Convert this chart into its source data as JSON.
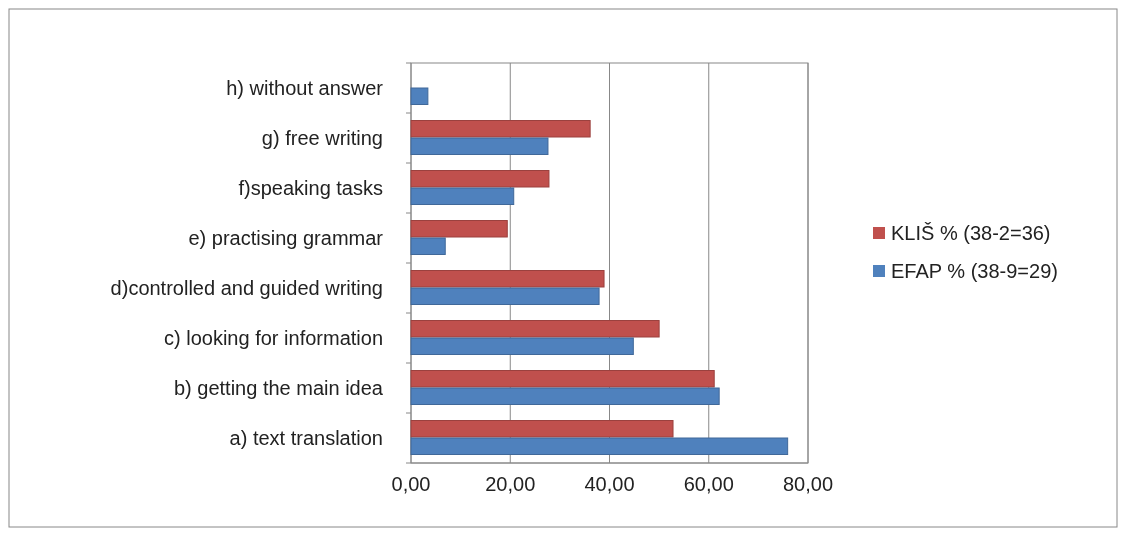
{
  "chart_data": {
    "type": "bar",
    "orientation": "horizontal",
    "categories": [
      "h) without answer",
      "g) free writing",
      "f)speaking tasks",
      "e) practising grammar",
      "d)controlled and guided writing",
      "c) looking for information",
      "b) getting the main idea",
      "a) text translation"
    ],
    "series": [
      {
        "name": "KLIŠ % (38-2=36)",
        "color": "#c0504d",
        "values": [
          0,
          36.1,
          27.8,
          19.4,
          38.9,
          50,
          61.1,
          52.8
        ]
      },
      {
        "name": "EFAP % (38-9=29)",
        "color": "#4f81bd",
        "values": [
          3.4,
          27.6,
          20.7,
          6.9,
          37.9,
          44.8,
          62.1,
          75.9
        ]
      }
    ],
    "xlim": [
      0,
      80
    ],
    "xticks": [
      {
        "value": 0,
        "label": "0,00"
      },
      {
        "value": 20,
        "label": "20,00"
      },
      {
        "value": 40,
        "label": "40,00"
      },
      {
        "value": 60,
        "label": "60,00"
      },
      {
        "value": 80,
        "label": "80,00"
      }
    ],
    "grid": "x",
    "legend": "right"
  }
}
